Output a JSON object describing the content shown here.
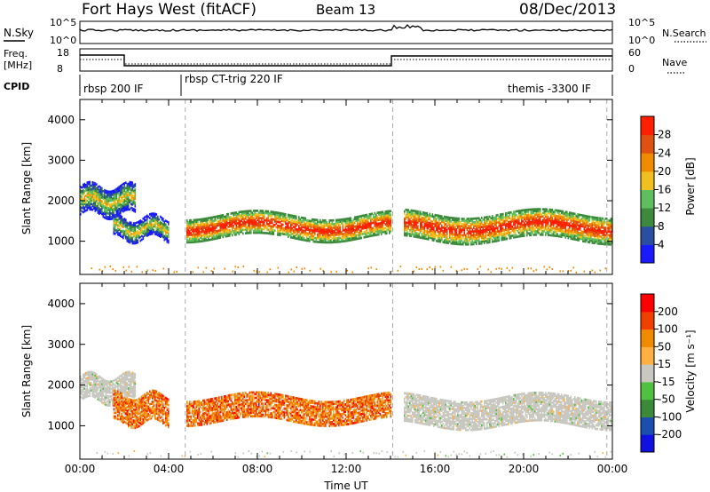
{
  "header": {
    "station": "Fort Hays West (fitACF)",
    "beam": "Beam 13",
    "date": "08/Dec/2013"
  },
  "summary_panels": {
    "nsky_label": "N.Sky",
    "nsky_ticks": [
      "10^5",
      "10^0"
    ],
    "nsearch_label": "N.Search",
    "nsearch_ticks": [
      "10^5",
      "10^0"
    ],
    "freq_label_line1": "Freq.",
    "freq_label_line2": "[MHz]",
    "freq_ticks": [
      "18",
      "8"
    ],
    "nave_label": "Nave",
    "nave_ticks": [
      "60",
      "0"
    ],
    "cpid_label": "CPID",
    "cpid_segments": [
      {
        "label": "rbsp 200 IF"
      },
      {
        "label": "rbsp CT-trig 220 IF"
      },
      {
        "label": "themis -3300 IF"
      }
    ]
  },
  "colors": {
    "power_scale": [
      "#1a1aff",
      "#2a4fa0",
      "#3d8a3d",
      "#5fbf5f",
      "#f0c020",
      "#f08a00",
      "#e05010",
      "#ff2000"
    ],
    "velocity_scale": [
      "#ff0000",
      "#f04000",
      "#f08a00",
      "#ffb040",
      "#c8c8c0",
      "#50c040",
      "#3a8a3a",
      "#1a4fb0",
      "#1010e0"
    ],
    "axis": "#000000",
    "grid_dash": "#b0b0b0"
  },
  "chart_data": [
    {
      "type": "line",
      "title": "N.Sky / N.Search",
      "x": [
        "00:00",
        "04:00",
        "08:00",
        "12:00",
        "14:00",
        "14:30",
        "16:00",
        "20:00",
        "24:00"
      ],
      "series": [
        {
          "name": "N.Sky",
          "values": [
            300,
            300,
            300,
            300,
            5000,
            300,
            300,
            300,
            300
          ]
        }
      ],
      "ylim": [
        1,
        100000
      ],
      "log_scale": true
    },
    {
      "type": "line",
      "title": "Freq. / Nave",
      "x": [
        "00:00",
        "02:00",
        "02:00",
        "14:30",
        "14:30",
        "24:00"
      ],
      "series": [
        {
          "name": "Freq.",
          "values": [
            10.5,
            10.5,
            9,
            9,
            10.5,
            10.5
          ]
        }
      ],
      "ylim": [
        8,
        18
      ]
    },
    {
      "type": "heatmap",
      "ylabel": "Slant Range [km]",
      "yticks": [
        "1000",
        "2000",
        "3000",
        "4000"
      ],
      "ylim": [
        180,
        4500
      ],
      "xlim": [
        "00:00",
        "24:00"
      ],
      "xticks": [
        "00:00",
        "04:00",
        "08:00",
        "12:00",
        "16:00",
        "20:00",
        "00:00"
      ],
      "colorbar": {
        "label": "Power [dB]",
        "ticks": [
          "4",
          "8",
          "12",
          "16",
          "20",
          "24",
          "28"
        ],
        "range": [
          0,
          32
        ]
      },
      "bands": [
        {
          "t0": 0.0,
          "t1": 2.5,
          "center_km": 2000,
          "width_km": 700,
          "level": "mid"
        },
        {
          "t0": 1.5,
          "t1": 4.0,
          "center_km": 1300,
          "width_km": 500,
          "level": "mid"
        },
        {
          "t0": 4.8,
          "t1": 14.0,
          "center_km": 1350,
          "width_km": 550,
          "level": "high"
        },
        {
          "t0": 14.6,
          "t1": 24.0,
          "center_km": 1350,
          "width_km": 650,
          "level": "high"
        }
      ]
    },
    {
      "type": "heatmap",
      "ylabel": "Slant Range [km]",
      "yticks": [
        "1000",
        "2000",
        "3000",
        "4000"
      ],
      "ylim": [
        180,
        4500
      ],
      "xlim": [
        "00:00",
        "24:00"
      ],
      "xticks": [
        "00:00",
        "04:00",
        "08:00",
        "12:00",
        "16:00",
        "20:00",
        "00:00"
      ],
      "xlabel": "Time UT",
      "colorbar": {
        "label": "Velocity [m s⁻¹]",
        "ticks": [
          "200",
          "100",
          "50",
          "15",
          "-15",
          "-50",
          "-100",
          "-200"
        ],
        "range": [
          -250,
          250
        ]
      },
      "bands": [
        {
          "t0": 0.0,
          "t1": 2.5,
          "center_km": 1900,
          "width_km": 600,
          "velocity": "ground"
        },
        {
          "t0": 1.5,
          "t1": 4.0,
          "center_km": 1400,
          "width_km": 700,
          "velocity": "negative"
        },
        {
          "t0": 4.8,
          "t1": 14.0,
          "center_km": 1400,
          "width_km": 600,
          "velocity": "negative"
        },
        {
          "t0": 14.6,
          "t1": 24.0,
          "center_km": 1350,
          "width_km": 700,
          "velocity": "ground"
        }
      ]
    }
  ]
}
